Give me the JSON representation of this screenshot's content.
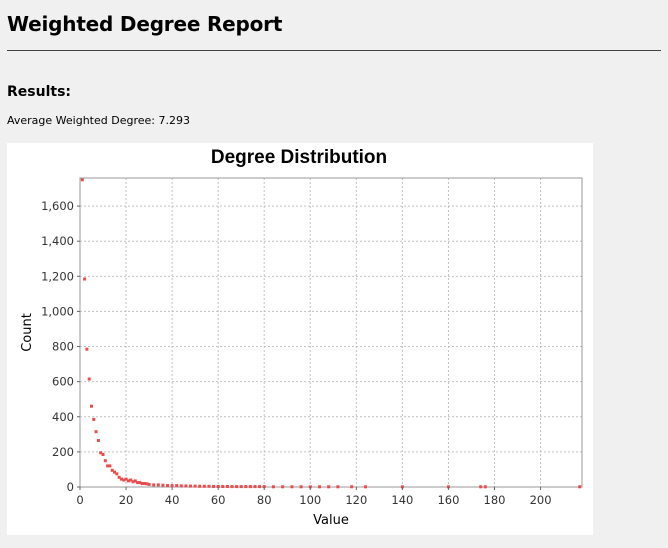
{
  "report": {
    "title": "Weighted Degree Report",
    "results_heading": "Results:",
    "average_label": "Average Weighted Degree:",
    "average_value": "7.293",
    "average_line": "Average Weighted Degree: 7.293"
  },
  "colors": {
    "point": "#e84c4c",
    "grid": "#c0c0c0",
    "background": "#f0f0f0",
    "plot_background": "#ffffff"
  },
  "chart_data": {
    "type": "scatter",
    "title": "Degree Distribution",
    "xlabel": "Value",
    "ylabel": "Count",
    "xlim": [
      0,
      218
    ],
    "ylim": [
      0,
      1760
    ],
    "xticks": [
      0,
      20,
      40,
      60,
      80,
      100,
      120,
      140,
      160,
      180,
      200
    ],
    "xtick_labels": [
      "0",
      "20",
      "40",
      "60",
      "80",
      "100",
      "120",
      "140",
      "160",
      "180",
      "200"
    ],
    "yticks": [
      0,
      200,
      400,
      600,
      800,
      1000,
      1200,
      1400,
      1600
    ],
    "ytick_labels": [
      "0",
      "200",
      "400",
      "600",
      "800",
      "1,000",
      "1,200",
      "1,400",
      "1,600"
    ],
    "grid": true,
    "legend": "none",
    "series": [
      {
        "x": [
          1,
          2,
          3,
          4,
          5,
          6,
          7,
          8,
          9,
          10,
          11,
          12,
          13,
          14,
          15,
          16,
          17,
          18,
          19,
          20,
          21,
          22,
          23,
          24,
          25,
          26,
          27,
          28,
          29,
          30,
          32,
          34,
          36,
          38,
          40,
          42,
          44,
          46,
          48,
          50,
          52,
          54,
          56,
          58,
          60,
          62,
          64,
          66,
          68,
          70,
          72,
          74,
          76,
          78,
          80,
          84,
          88,
          92,
          96,
          100,
          104,
          108,
          112,
          118,
          124,
          140,
          160,
          174,
          176,
          217
        ],
        "y": [
          1750,
          1185,
          785,
          615,
          460,
          385,
          315,
          265,
          195,
          185,
          150,
          120,
          120,
          95,
          85,
          75,
          55,
          45,
          40,
          45,
          35,
          40,
          30,
          35,
          25,
          25,
          20,
          20,
          18,
          15,
          12,
          12,
          10,
          8,
          8,
          8,
          6,
          6,
          5,
          5,
          4,
          4,
          4,
          3,
          3,
          3,
          3,
          2,
          2,
          2,
          2,
          2,
          2,
          2,
          2,
          1,
          1,
          1,
          1,
          1,
          1,
          1,
          1,
          1,
          1,
          1,
          1,
          1,
          1,
          1
        ]
      }
    ]
  }
}
